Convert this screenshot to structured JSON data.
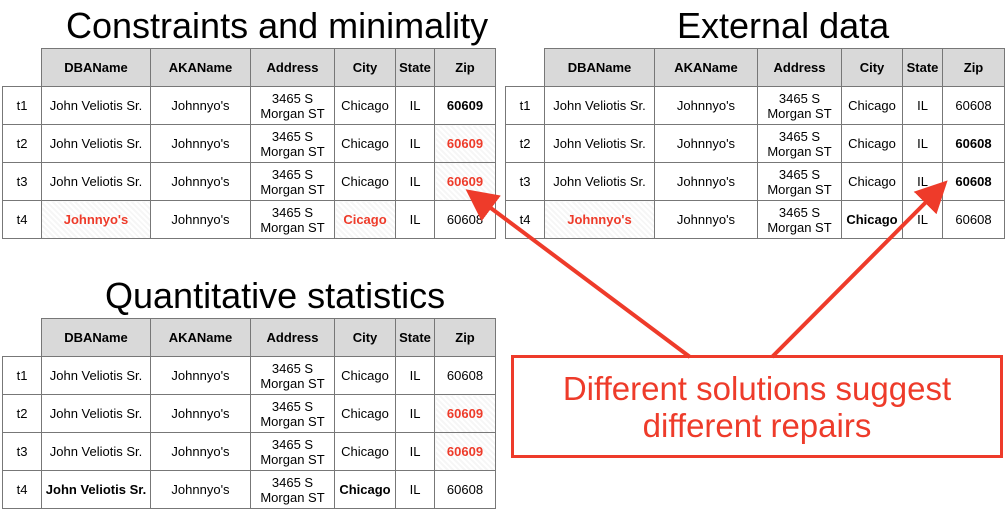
{
  "panels": {
    "constraints": {
      "title": "Constraints and minimality",
      "headers": [
        "DBAName",
        "AKAName",
        "Address",
        "City",
        "State",
        "Zip"
      ],
      "rows": [
        {
          "id": "t1",
          "dba": "John Veliotis Sr.",
          "aka": "Johnnyo's",
          "addr1": "3465 S",
          "addr2": "Morgan ST",
          "city": "Chicago",
          "state": "IL",
          "zip": "60609"
        },
        {
          "id": "t2",
          "dba": "John Veliotis Sr.",
          "aka": "Johnnyo's",
          "addr1": "3465 S",
          "addr2": "Morgan ST",
          "city": "Chicago",
          "state": "IL",
          "zip": "60609"
        },
        {
          "id": "t3",
          "dba": "John Veliotis Sr.",
          "aka": "Johnnyo's",
          "addr1": "3465 S",
          "addr2": "Morgan ST",
          "city": "Chicago",
          "state": "IL",
          "zip": "60609"
        },
        {
          "id": "t4",
          "dba": "Johnnyo's",
          "aka": "Johnnyo's",
          "addr1": "3465 S",
          "addr2": "Morgan ST",
          "city": "Cicago",
          "state": "IL",
          "zip": "60608"
        }
      ]
    },
    "external": {
      "title": "External data",
      "headers": [
        "DBAName",
        "AKAName",
        "Address",
        "City",
        "State",
        "Zip"
      ],
      "rows": [
        {
          "id": "t1",
          "dba": "John Veliotis Sr.",
          "aka": "Johnnyo's",
          "addr1": "3465 S",
          "addr2": "Morgan ST",
          "city": "Chicago",
          "state": "IL",
          "zip": "60608"
        },
        {
          "id": "t2",
          "dba": "John Veliotis Sr.",
          "aka": "Johnnyo's",
          "addr1": "3465 S",
          "addr2": "Morgan ST",
          "city": "Chicago",
          "state": "IL",
          "zip": "60608"
        },
        {
          "id": "t3",
          "dba": "John Veliotis Sr.",
          "aka": "Johnnyo's",
          "addr1": "3465 S",
          "addr2": "Morgan ST",
          "city": "Chicago",
          "state": "IL",
          "zip": "60608"
        },
        {
          "id": "t4",
          "dba": "Johnnyo's",
          "aka": "Johnnyo's",
          "addr1": "3465 S",
          "addr2": "Morgan ST",
          "city": "Chicago",
          "state": "IL",
          "zip": "60608"
        }
      ]
    },
    "quantitative": {
      "title": "Quantitative statistics",
      "headers": [
        "DBAName",
        "AKAName",
        "Address",
        "City",
        "State",
        "Zip"
      ],
      "rows": [
        {
          "id": "t1",
          "dba": "John Veliotis Sr.",
          "aka": "Johnnyo's",
          "addr1": "3465 S",
          "addr2": "Morgan ST",
          "city": "Chicago",
          "state": "IL",
          "zip": "60608"
        },
        {
          "id": "t2",
          "dba": "John Veliotis Sr.",
          "aka": "Johnnyo's",
          "addr1": "3465 S",
          "addr2": "Morgan ST",
          "city": "Chicago",
          "state": "IL",
          "zip": "60609"
        },
        {
          "id": "t3",
          "dba": "John Veliotis Sr.",
          "aka": "Johnnyo's",
          "addr1": "3465 S",
          "addr2": "Morgan ST",
          "city": "Chicago",
          "state": "IL",
          "zip": "60609"
        },
        {
          "id": "t4",
          "dba": "John Veliotis Sr.",
          "aka": "Johnnyo's",
          "addr1": "3465 S",
          "addr2": "Morgan ST",
          "city": "Chicago",
          "state": "IL",
          "zip": "60608"
        }
      ]
    }
  },
  "callout": {
    "line1": "Different solutions suggest",
    "line2": "different repairs"
  },
  "colors": {
    "accent": "#ee3b2a",
    "header_bg": "#d9d9d9",
    "border": "#777777"
  }
}
